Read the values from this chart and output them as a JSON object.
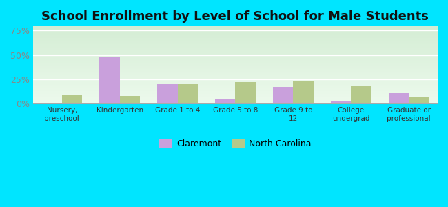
{
  "title": "School Enrollment by Level of School for Male Students",
  "categories": [
    "Nursery,\npreschool",
    "Kindergarten",
    "Grade 1 to 4",
    "Grade 5 to 8",
    "Grade 9 to\n12",
    "College\nundergrad",
    "Graduate or\nprofessional"
  ],
  "claremont": [
    0,
    48,
    20,
    5,
    17,
    2,
    11
  ],
  "north_carolina": [
    9,
    8,
    20,
    22,
    23,
    18,
    7
  ],
  "claremont_color": "#c9a0dc",
  "nc_color": "#b5c98a",
  "ylim": [
    0,
    80
  ],
  "yticks": [
    0,
    25,
    50,
    75
  ],
  "ytick_labels": [
    "0%",
    "25%",
    "50%",
    "75%"
  ],
  "bg_top": "#d4edd4",
  "bg_bottom": "#edfaed",
  "outer_bg": "#00e5ff",
  "title_fontsize": 13,
  "legend_labels": [
    "Claremont",
    "North Carolina"
  ],
  "bar_width": 0.35
}
